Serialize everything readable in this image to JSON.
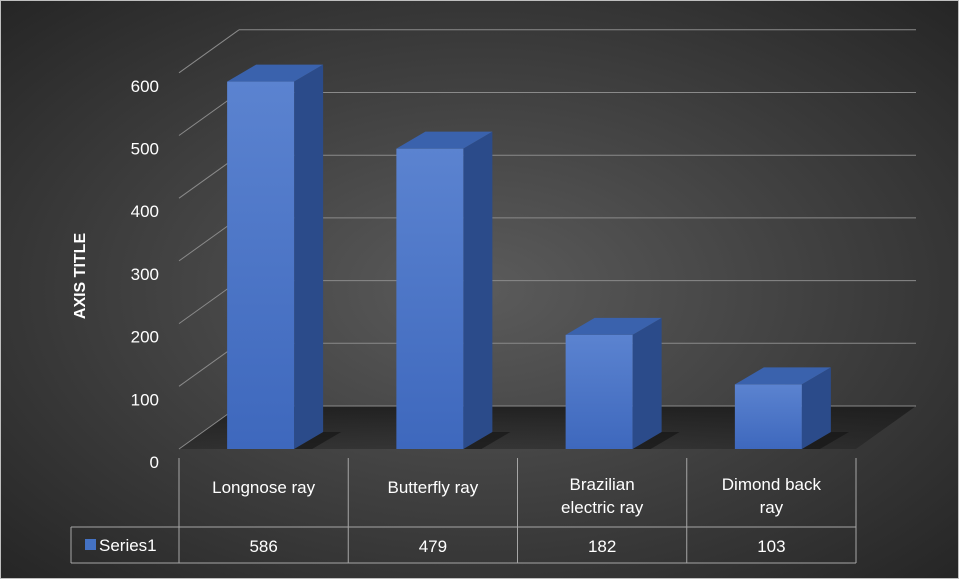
{
  "chart_data": {
    "type": "bar",
    "style": "3d-column with data table",
    "ylabel": "AXIS TITLE",
    "ylim": [
      0,
      600
    ],
    "yticks": [
      "0",
      "100",
      "200",
      "300",
      "400",
      "500",
      "600"
    ],
    "grid": true,
    "categories": [
      [
        "Longnose ray"
      ],
      [
        "Butterfly ray"
      ],
      [
        "Brazilian",
        "electric ray"
      ],
      [
        "Dimond back",
        "ray"
      ]
    ],
    "series": [
      {
        "name": "Series1",
        "values": [
          586,
          479,
          182,
          103
        ]
      }
    ],
    "table_values": [
      "586",
      "479",
      "182",
      "103"
    ],
    "colors": {
      "bar_front": "#4472c4",
      "bar_top": "#3a62ad",
      "bar_side": "#2b4b8a",
      "background_center": "#5a5a5a",
      "background_edge": "#262626",
      "grid": "#8a8a8a",
      "text": "#ffffff"
    }
  }
}
